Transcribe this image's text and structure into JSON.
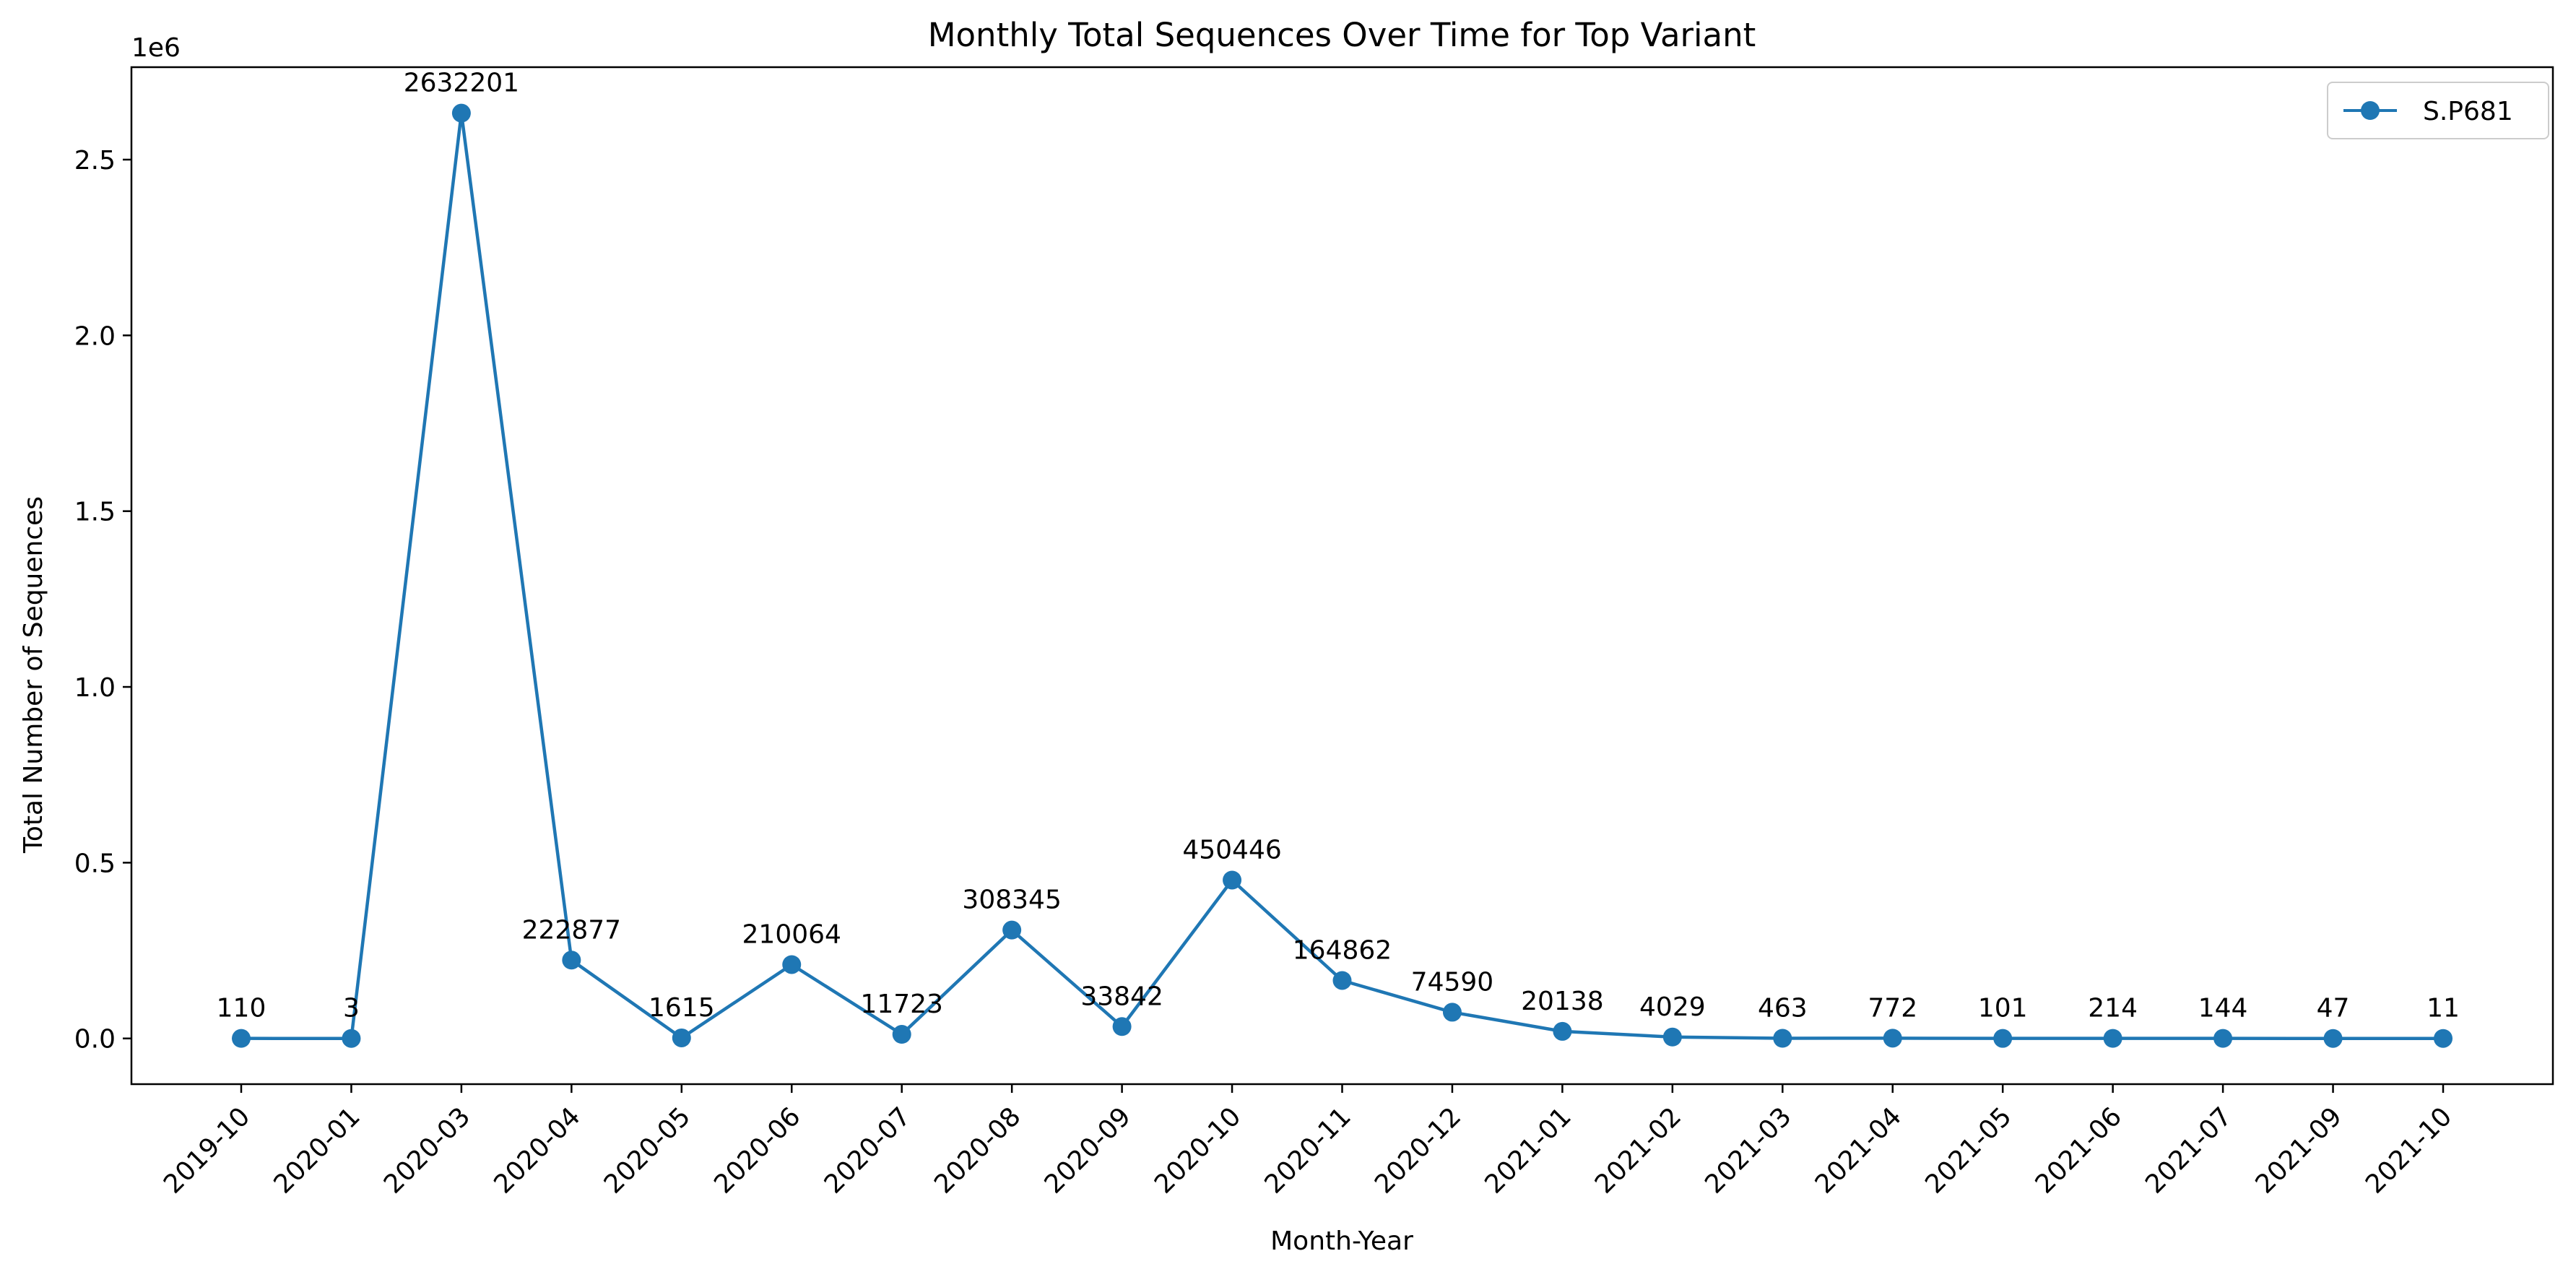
{
  "chart_data": {
    "type": "line",
    "title": "Monthly Total Sequences Over Time for Top Variant",
    "xlabel": "Month-Year",
    "ylabel": "Total Number of Sequences",
    "y_offset_label": "1e6",
    "categories": [
      "2019-10",
      "2020-01",
      "2020-03",
      "2020-04",
      "2020-05",
      "2020-06",
      "2020-07",
      "2020-08",
      "2020-09",
      "2020-10",
      "2020-11",
      "2020-12",
      "2021-01",
      "2021-02",
      "2021-03",
      "2021-04",
      "2021-05",
      "2021-06",
      "2021-07",
      "2021-09",
      "2021-10"
    ],
    "series": [
      {
        "name": "S.P681",
        "values": [
          110,
          3,
          2632201,
          222877,
          1615,
          210064,
          11723,
          308345,
          33842,
          450446,
          164862,
          74590,
          20138,
          4029,
          463,
          772,
          101,
          214,
          144,
          47,
          11
        ],
        "color": "#1f77b4"
      }
    ],
    "ylim": [
      -130000,
      2763000
    ],
    "yticks": [
      0,
      500000,
      1000000,
      1500000,
      2000000,
      2500000
    ],
    "ytick_labels": [
      "0.0",
      "0.5",
      "1.0",
      "1.5",
      "2.0",
      "2.5"
    ],
    "grid": false,
    "legend": "top-right"
  }
}
